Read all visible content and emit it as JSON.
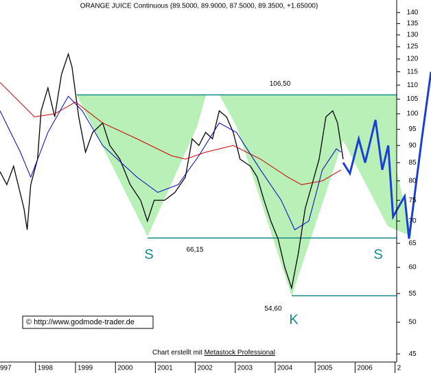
{
  "chart_data": {
    "type": "line",
    "title": "ORANGE JUICE Continuous (89.5000, 89.9000, 87.5000, 89.3500, +1.65000)",
    "log_scale": true,
    "xlim": [
      1997.11,
      2007.9
    ],
    "ylim": [
      43.6,
      146
    ],
    "xticks": [
      {
        "value": 1997,
        "label": "997"
      },
      1998,
      1999,
      2000,
      2001,
      2002,
      2003,
      2004,
      2005,
      2006,
      {
        "value": 2007,
        "label": "2"
      }
    ],
    "yticks": [
      45,
      50,
      55,
      60,
      65,
      70,
      75,
      80,
      85,
      90,
      95,
      100,
      105,
      110,
      115,
      120,
      125,
      130,
      135,
      140
    ],
    "series": [
      {
        "color": "#000000",
        "x": [
          1997.11,
          1997.28,
          1997.45,
          1997.71,
          1997.79,
          1997.88,
          1998.05,
          1998.14,
          1998.31,
          1998.48,
          1998.65,
          1998.82,
          1998.91,
          1999.08,
          1999.25,
          1999.43,
          1999.68,
          1999.86,
          2000.11,
          2000.37,
          2000.63,
          2000.8,
          2000.97,
          2001.23,
          2001.49,
          2001.75,
          2001.92,
          2002.09,
          2002.26,
          2002.43,
          2002.6,
          2002.78,
          2002.95,
          2003.12,
          2003.38,
          2003.55,
          2003.72,
          2003.89,
          2004.07,
          2004.24,
          2004.41,
          2004.58,
          2004.75,
          2004.92,
          2005.1,
          2005.27,
          2005.44,
          2005.56,
          2005.7
        ],
        "values": [
          82.5,
          79,
          84,
          73,
          68,
          79,
          86,
          101,
          109,
          99,
          114,
          122,
          117,
          99,
          88,
          94,
          97,
          90,
          86,
          79,
          75,
          70,
          75,
          75,
          77,
          81,
          92,
          90,
          94,
          92,
          101,
          99,
          94,
          86,
          84,
          81,
          75,
          70,
          66,
          60,
          56,
          63,
          73,
          79,
          86,
          99,
          101,
          97,
          86
        ]
      },
      {
        "color": "#cc0000",
        "x": [
          1997.11,
          1997.97,
          1998.48,
          1999.0,
          1999.68,
          2000.54,
          2001.4,
          2001.75,
          2002.26,
          2002.95,
          2003.63,
          2004.32,
          2004.66,
          2005.18,
          2005.65
        ],
        "values": [
          111,
          99,
          100,
          104,
          97,
          92,
          87,
          86,
          88,
          90,
          86,
          81,
          79,
          80,
          83
        ]
      },
      {
        "color": "#0000cc",
        "x": [
          1997.11,
          1997.62,
          1997.88,
          1998.31,
          1998.82,
          1999.17,
          1999.68,
          2000.54,
          2001.06,
          2001.57,
          2002.09,
          2002.6,
          2003.03,
          2003.63,
          2004.15,
          2004.49,
          2004.84,
          2005.18,
          2005.53,
          2005.65
        ],
        "values": [
          101,
          88,
          81,
          94,
          106,
          101,
          90,
          81,
          77,
          79,
          87,
          97,
          94,
          83,
          75,
          68,
          70,
          83,
          89,
          88
        ]
      },
      {
        "color": "#1a3fd6",
        "x": [
          2005.7,
          2005.87,
          2006.09,
          2006.25,
          2006.51,
          2006.68,
          2006.83,
          2006.95,
          2007.24,
          2007.35,
          2007.67,
          2007.9
        ],
        "values": [
          85,
          82,
          92,
          85,
          98,
          83,
          90,
          71,
          76,
          66,
          92,
          115
        ]
      }
    ],
    "levels": [
      {
        "value": 106.5,
        "label": "106,50"
      },
      {
        "value": 66.15,
        "label": "66,15"
      },
      {
        "value": 54.6,
        "label": "54,60"
      }
    ],
    "patterns": [
      "S",
      "S",
      "K"
    ],
    "copyright": "© http://www.godmode-trader.de",
    "credit": "Chart erstellt mit",
    "credit_link": "Metastock Professional"
  }
}
